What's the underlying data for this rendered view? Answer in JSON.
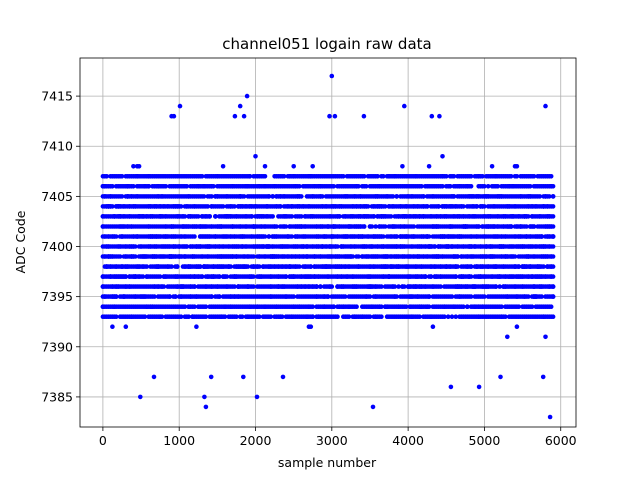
{
  "chart_data": {
    "type": "scatter",
    "title": "channel051 logain raw data",
    "xlabel": "sample number",
    "ylabel": "ADC Code",
    "xlim": [
      -300,
      6200
    ],
    "ylim": [
      7382,
      7418.8
    ],
    "xticks": [
      0,
      1000,
      2000,
      3000,
      4000,
      5000,
      6000
    ],
    "yticks": [
      7385,
      7390,
      7395,
      7400,
      7405,
      7410,
      7415
    ],
    "grid": true,
    "marker_color": "#0000ff",
    "series": [
      {
        "x_range": [
          0,
          5900
        ],
        "x_step": 25,
        "y_min_typical": 7391,
        "y_max_typical": 7409,
        "center": 7400,
        "outliers": [
          {
            "x": 490,
            "y": 7385
          },
          {
            "x": 1330,
            "y": 7385
          },
          {
            "x": 1350,
            "y": 7384
          },
          {
            "x": 2020,
            "y": 7385
          },
          {
            "x": 3540,
            "y": 7384
          },
          {
            "x": 5860,
            "y": 7383
          },
          {
            "x": 3000,
            "y": 7417
          },
          {
            "x": 1890,
            "y": 7415
          },
          {
            "x": 1010,
            "y": 7414
          },
          {
            "x": 1800,
            "y": 7414
          },
          {
            "x": 3950,
            "y": 7414
          },
          {
            "x": 5800,
            "y": 7414
          },
          {
            "x": 900,
            "y": 7413
          },
          {
            "x": 930,
            "y": 7413
          },
          {
            "x": 2970,
            "y": 7413
          },
          {
            "x": 3040,
            "y": 7413
          },
          {
            "x": 3420,
            "y": 7413
          },
          {
            "x": 4310,
            "y": 7413
          },
          {
            "x": 4410,
            "y": 7413
          },
          {
            "x": 1730,
            "y": 7413
          },
          {
            "x": 1850,
            "y": 7413
          },
          {
            "x": 4930,
            "y": 7386
          },
          {
            "x": 4560,
            "y": 7386
          },
          {
            "x": 670,
            "y": 7387
          },
          {
            "x": 1420,
            "y": 7387
          },
          {
            "x": 1840,
            "y": 7387
          },
          {
            "x": 2360,
            "y": 7387
          },
          {
            "x": 5210,
            "y": 7387
          },
          {
            "x": 5770,
            "y": 7387
          }
        ]
      }
    ]
  }
}
